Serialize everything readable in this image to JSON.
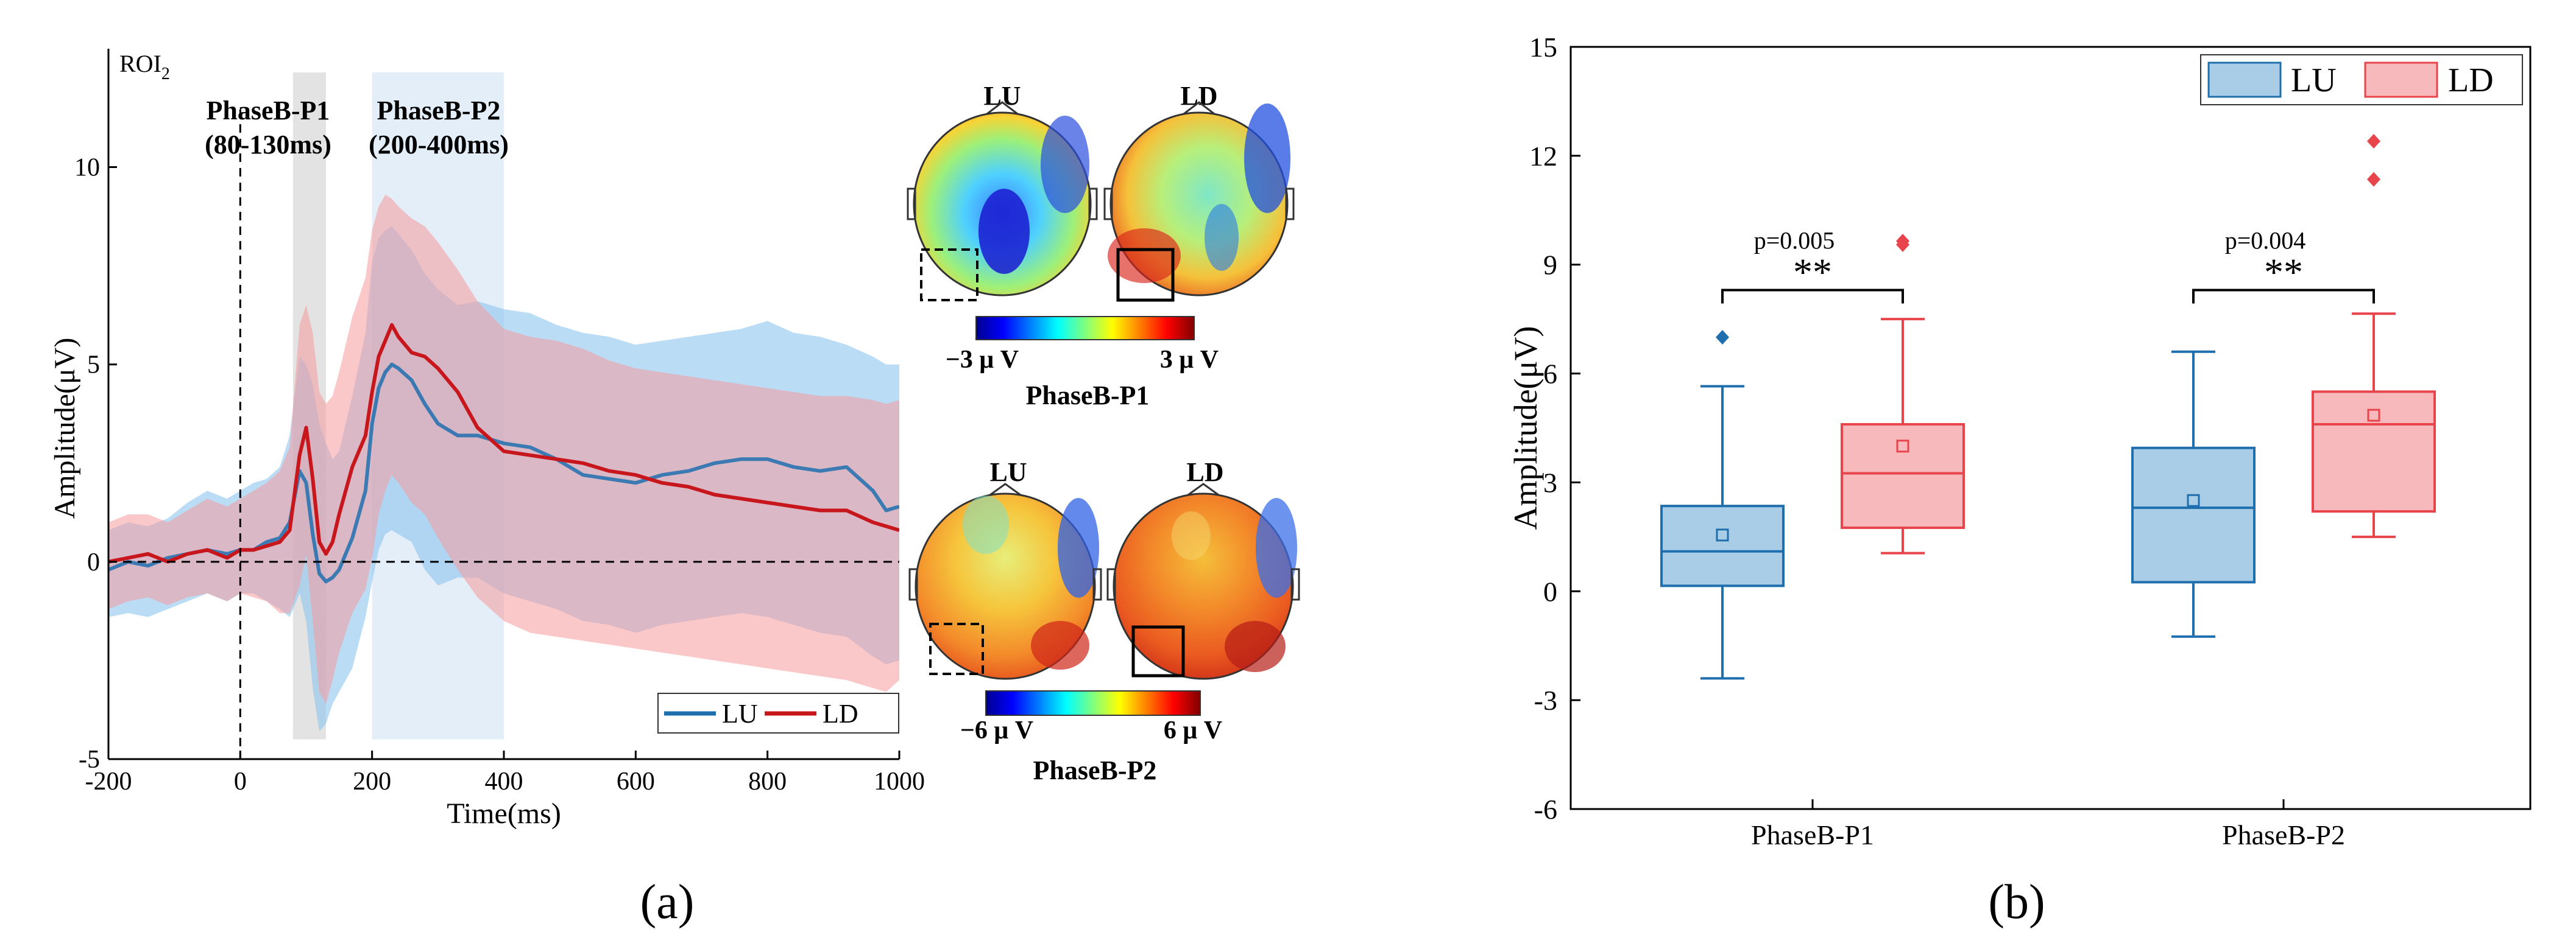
{
  "colors": {
    "lu_line": "#1f6fae",
    "ld_line": "#c8161d",
    "lu_band": "#8ec4ef",
    "ld_band": "#f59a9d",
    "overlap_band": "#a27f9f",
    "p1_window": "#e3e3e3",
    "p2_window": "#e3eef9",
    "lu_box": "#a9cde6",
    "ld_box": "#f8b9bd",
    "lu_edge": "#1f6fae",
    "ld_edge": "#e8444c",
    "outlier_lu": "#1f6fae",
    "outlier_ld": "#e8444c"
  },
  "panel_a": {
    "label": "(a)",
    "roi_label": "ROI",
    "roi_sub": "2",
    "window1": {
      "name": "PhaseB-P1",
      "range": "(80-130ms)",
      "start": 80,
      "end": 130
    },
    "window2": {
      "name": "PhaseB-P2",
      "range": "(200-400ms)",
      "start": 200,
      "end": 400
    },
    "legend": [
      "LU",
      "LD"
    ],
    "chart_data": {
      "type": "line",
      "xlabel": "Time(ms)",
      "ylabel": "Amplitude(μV)",
      "xlim": [
        -200,
        1000
      ],
      "ylim": [
        -5,
        13
      ],
      "xticks": [
        -200,
        0,
        200,
        400,
        600,
        800,
        1000
      ],
      "yticks": [
        -5,
        0,
        5,
        10
      ],
      "series": [
        {
          "name": "LU",
          "x": [
            -200,
            -170,
            -140,
            -110,
            -80,
            -50,
            -20,
            0,
            20,
            40,
            60,
            75,
            90,
            100,
            110,
            120,
            130,
            140,
            150,
            170,
            190,
            200,
            210,
            220,
            230,
            240,
            260,
            280,
            300,
            330,
            360,
            400,
            440,
            480,
            520,
            560,
            600,
            640,
            680,
            720,
            760,
            800,
            840,
            880,
            920,
            960,
            980,
            1000
          ],
          "mean": [
            -0.2,
            0.0,
            -0.1,
            0.1,
            0.2,
            0.3,
            0.2,
            0.3,
            0.3,
            0.5,
            0.6,
            1.0,
            2.3,
            2.0,
            0.7,
            -0.3,
            -0.5,
            -0.4,
            -0.2,
            0.6,
            1.8,
            3.5,
            4.4,
            4.8,
            5.0,
            4.9,
            4.6,
            4.0,
            3.5,
            3.2,
            3.2,
            3.0,
            2.9,
            2.6,
            2.2,
            2.1,
            2.0,
            2.2,
            2.3,
            2.5,
            2.6,
            2.6,
            2.4,
            2.3,
            2.4,
            1.8,
            1.3,
            1.4
          ],
          "upper": [
            0.8,
            1.0,
            0.9,
            1.1,
            1.5,
            1.8,
            1.6,
            1.8,
            2.0,
            2.1,
            2.4,
            3.2,
            5.2,
            5.0,
            4.5,
            3.5,
            3.0,
            2.6,
            2.8,
            4.2,
            5.8,
            7.6,
            8.2,
            8.4,
            8.5,
            8.3,
            7.9,
            7.3,
            6.9,
            6.5,
            6.6,
            6.4,
            6.3,
            6.0,
            5.8,
            5.7,
            5.5,
            5.6,
            5.7,
            5.8,
            5.9,
            6.1,
            5.8,
            5.7,
            5.5,
            5.2,
            5.0,
            5.0
          ],
          "lower": [
            -1.4,
            -1.3,
            -1.4,
            -1.2,
            -1.0,
            -0.8,
            -1.0,
            -0.8,
            -0.8,
            -1.0,
            -1.2,
            -1.4,
            -0.8,
            -1.5,
            -3.2,
            -4.3,
            -4.1,
            -3.6,
            -3.3,
            -2.7,
            -1.4,
            -0.5,
            0.3,
            0.7,
            0.8,
            0.7,
            0.5,
            -0.2,
            -0.6,
            -0.4,
            -0.4,
            -0.8,
            -1.0,
            -1.2,
            -1.5,
            -1.6,
            -1.8,
            -1.6,
            -1.5,
            -1.4,
            -1.3,
            -1.4,
            -1.6,
            -1.8,
            -1.9,
            -2.4,
            -2.6,
            -2.5
          ]
        },
        {
          "name": "LD",
          "x": [
            -200,
            -170,
            -140,
            -110,
            -80,
            -50,
            -20,
            0,
            20,
            40,
            60,
            75,
            90,
            100,
            110,
            120,
            130,
            140,
            150,
            170,
            190,
            200,
            210,
            220,
            230,
            240,
            260,
            280,
            300,
            330,
            360,
            400,
            440,
            480,
            520,
            560,
            600,
            640,
            680,
            720,
            760,
            800,
            840,
            880,
            920,
            960,
            980,
            1000
          ],
          "mean": [
            0.0,
            0.1,
            0.2,
            0.0,
            0.2,
            0.3,
            0.1,
            0.3,
            0.3,
            0.4,
            0.5,
            0.8,
            2.7,
            3.4,
            2.1,
            0.5,
            0.2,
            0.5,
            1.2,
            2.4,
            3.2,
            4.3,
            5.2,
            5.6,
            6.0,
            5.7,
            5.3,
            5.2,
            4.9,
            4.3,
            3.4,
            2.8,
            2.7,
            2.6,
            2.5,
            2.3,
            2.2,
            2.0,
            1.9,
            1.7,
            1.6,
            1.5,
            1.4,
            1.3,
            1.3,
            1.0,
            0.9,
            0.8
          ],
          "upper": [
            1.0,
            1.2,
            1.2,
            1.0,
            1.3,
            1.6,
            1.4,
            1.6,
            1.8,
            2.0,
            2.3,
            2.9,
            6.0,
            6.5,
            5.8,
            4.3,
            4.0,
            4.2,
            4.8,
            6.2,
            7.2,
            8.4,
            9.0,
            9.3,
            9.2,
            9.0,
            8.7,
            8.5,
            8.1,
            7.4,
            6.6,
            5.9,
            5.7,
            5.6,
            5.4,
            5.1,
            4.9,
            4.8,
            4.7,
            4.6,
            4.5,
            4.4,
            4.3,
            4.2,
            4.2,
            4.1,
            4.0,
            4.1
          ],
          "lower": [
            -1.2,
            -1.0,
            -0.9,
            -1.1,
            -0.9,
            -0.8,
            -1.0,
            -0.8,
            -0.9,
            -1.0,
            -1.3,
            -1.3,
            -0.6,
            0.2,
            -1.5,
            -3.3,
            -3.6,
            -3.0,
            -2.3,
            -1.3,
            -0.7,
            0.1,
            1.2,
            1.8,
            2.2,
            2.0,
            1.5,
            1.2,
            0.6,
            -0.2,
            -0.9,
            -1.5,
            -1.8,
            -1.9,
            -2.0,
            -2.1,
            -2.2,
            -2.3,
            -2.4,
            -2.5,
            -2.6,
            -2.7,
            -2.8,
            -2.9,
            -3.0,
            -3.2,
            -3.3,
            -3.0
          ]
        }
      ]
    }
  },
  "topomaps": {
    "p1": {
      "lu_title": "LU",
      "ld_title": "LD",
      "min_label": "−3 μ V",
      "max_label": "3 μ V",
      "caption": "PhaseB-P1"
    },
    "p2": {
      "lu_title": "LU",
      "ld_title": "LD",
      "min_label": "−6 μ V",
      "max_label": "6 μ V",
      "caption": "PhaseB-P2"
    }
  },
  "panel_b": {
    "label": "(b)",
    "legend": [
      "LU",
      "LD"
    ],
    "chart_data": {
      "type": "box",
      "ylabel": "Amplitude(μV)",
      "ylim": [
        -6,
        15
      ],
      "yticks": [
        -6,
        -3,
        0,
        3,
        6,
        9,
        12,
        15
      ],
      "categories": [
        "PhaseB-P1",
        "PhaseB-P2"
      ],
      "series": [
        {
          "name": "LU",
          "boxes": [
            {
              "whisker_low": -2.4,
              "q1": 0.15,
              "median": 1.1,
              "q3": 2.35,
              "whisker_high": 5.65,
              "mean": 1.55,
              "outliers": [
                7.0
              ]
            },
            {
              "whisker_low": -1.25,
              "q1": 0.25,
              "median": 2.3,
              "q3": 3.95,
              "whisker_high": 6.6,
              "mean": 2.5,
              "outliers": []
            }
          ]
        },
        {
          "name": "LD",
          "boxes": [
            {
              "whisker_low": 1.05,
              "q1": 1.75,
              "median": 3.25,
              "q3": 4.6,
              "whisker_high": 7.5,
              "mean": 4.0,
              "outliers": [
                9.55,
                9.65
              ]
            },
            {
              "whisker_low": 1.5,
              "q1": 2.2,
              "median": 4.6,
              "q3": 5.5,
              "whisker_high": 7.65,
              "mean": 4.85,
              "outliers": [
                11.35,
                12.4
              ]
            }
          ]
        }
      ],
      "annotations": [
        {
          "category": "PhaseB-P1",
          "p_text": "p=0.005",
          "stars": "**",
          "bracket_y": 8.3
        },
        {
          "category": "PhaseB-P2",
          "p_text": "p=0.004",
          "stars": "**",
          "bracket_y": 8.3
        }
      ]
    }
  }
}
